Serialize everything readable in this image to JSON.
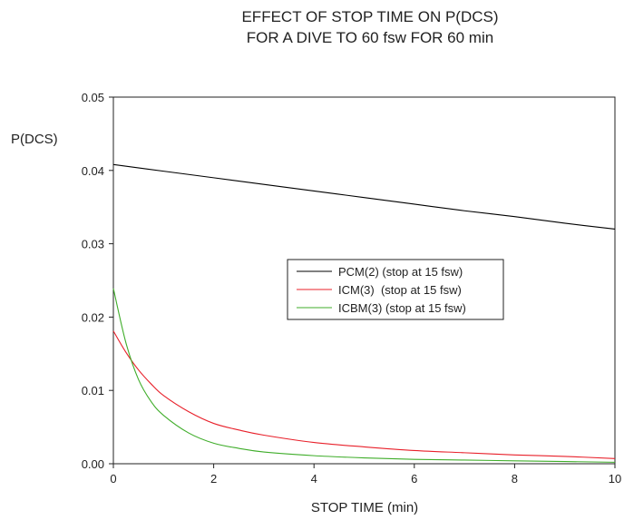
{
  "chart_data": {
    "type": "line",
    "title": [
      "EFFECT OF STOP TIME ON P(DCS)",
      "FOR A DIVE TO 60 fsw FOR 60 min"
    ],
    "xlabel": "STOP TIME (min)",
    "ylabel": "P(DCS)",
    "xlim": [
      0,
      10
    ],
    "ylim": [
      0,
      0.05
    ],
    "xticks": [
      0,
      2,
      4,
      6,
      8,
      10
    ],
    "xtick_labels": [
      "0",
      "2",
      "4",
      "6",
      "8",
      "10"
    ],
    "yticks": [
      0,
      0.01,
      0.02,
      0.03,
      0.04,
      0.05
    ],
    "ytick_labels": [
      "0.00",
      "0.01",
      "0.02",
      "0.03",
      "0.04",
      "0.05"
    ],
    "grid": false,
    "legend_position": "center-right",
    "series": [
      {
        "name": "PCM(2) (stop at 15 fsw)",
        "color": "#000000",
        "x": [
          0,
          1,
          2,
          3,
          4,
          5,
          6,
          7,
          8,
          9,
          10
        ],
        "y": [
          0.0408,
          0.0399,
          0.039,
          0.0381,
          0.0372,
          0.0363,
          0.0354,
          0.0345,
          0.0337,
          0.0328,
          0.032
        ]
      },
      {
        "name": "ICM(3)  (stop at 15 fsw)",
        "color": "#e8202a",
        "x": [
          0,
          0.25,
          0.5,
          0.75,
          1,
          1.5,
          2,
          2.5,
          3,
          4,
          5,
          6,
          7,
          8,
          9,
          10
        ],
        "y": [
          0.0181,
          0.0152,
          0.0128,
          0.0109,
          0.0093,
          0.0071,
          0.0055,
          0.0046,
          0.0039,
          0.0029,
          0.0023,
          0.0018,
          0.0015,
          0.0012,
          0.001,
          0.0007
        ]
      },
      {
        "name": "ICBM(3) (stop at 15 fsw)",
        "color": "#3fad2a",
        "x": [
          0,
          0.25,
          0.5,
          0.75,
          1,
          1.5,
          2,
          2.5,
          3,
          4,
          5,
          6,
          7,
          8,
          9,
          10
        ],
        "y": [
          0.0239,
          0.0165,
          0.0115,
          0.0085,
          0.0066,
          0.0042,
          0.0028,
          0.0021,
          0.0016,
          0.0011,
          0.0008,
          0.0006,
          0.0005,
          0.0004,
          0.0003,
          0.0002
        ]
      }
    ]
  }
}
